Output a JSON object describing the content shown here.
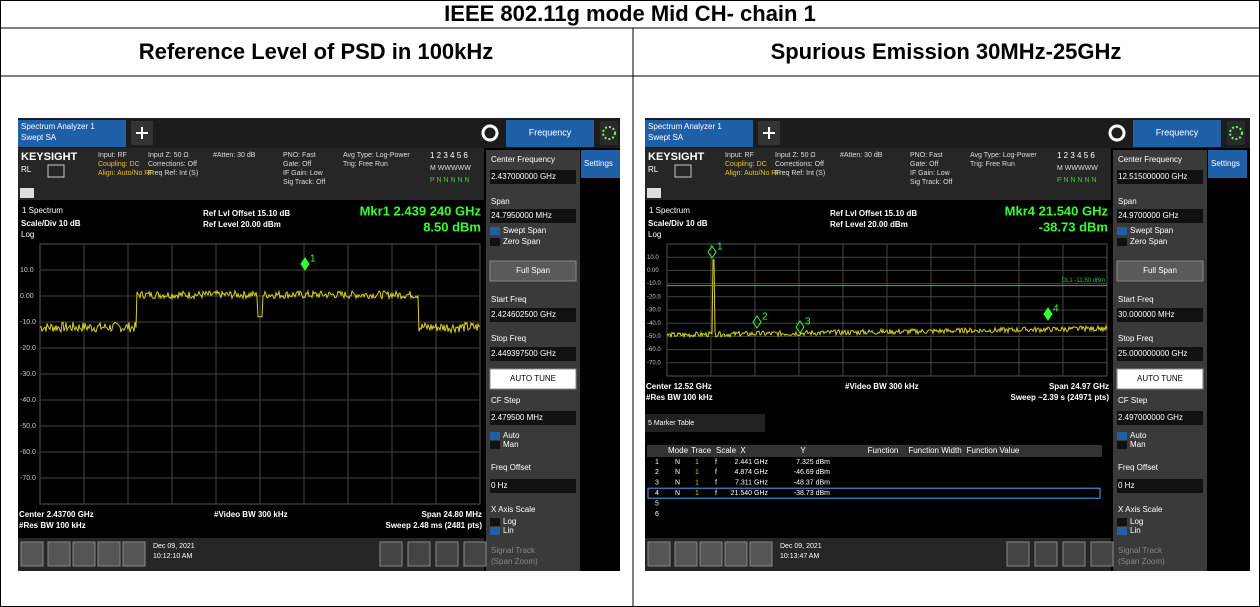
{
  "title": "IEEE 802.11g mode Mid CH- chain 1",
  "headers": [
    "Reference Level of PSD in 100kHz",
    "Spurious Emission 30MHz-25GHz"
  ],
  "panels": [
    {
      "tab": [
        "Spectrum Analyzer 1",
        "Swept SA"
      ],
      "mode": "Frequency",
      "settings": "Settings",
      "brand": "KEYSIGHT",
      "rl": "RL",
      "info": [
        [
          "Input: RF",
          "Coupling: DC",
          "Align: Auto/No RF"
        ],
        [
          "Input Z: 50 Ω",
          "Corrections: Off",
          "Freq Ref: Int (S)"
        ],
        [
          "#Atten: 30 dB"
        ],
        [
          "PNO: Fast",
          "Gate: Off",
          "IF Gain: Low",
          "Sig Track: Off"
        ],
        [
          "Avg Type: Log-Power",
          "Trig: Free Run"
        ]
      ],
      "traces": [
        "1 2 3 4 5 6",
        "M WWWWW",
        "P N N N N N"
      ],
      "window": "1 Spectrum",
      "scale": "Scale/Div 10 dB",
      "log": "Log",
      "ref": [
        "Ref Lvl Offset 15.10 dB",
        "Ref Level 20.00 dBm"
      ],
      "marker": [
        "Mkr1  2.439 240 GHz",
        "8.50 dBm"
      ],
      "ylabels": [
        "10.0",
        "0.00",
        "-10.0",
        "-20.0",
        "-30.0",
        "-40.0",
        "-50.0",
        "-60.0",
        "-70.0"
      ],
      "footer": [
        "Center 2.43700 GHz",
        "#Res BW 100 kHz",
        "#Video BW 300 kHz",
        "Span 24.80 MHz",
        "Sweep 2.48 ms (2481 pts)"
      ],
      "softkeys": [
        "Center Frequency",
        "2.437000000 GHz",
        "Span",
        "24.7950000 MHz",
        "Swept Span",
        "Zero Span",
        "Full Span",
        "Start Freq",
        "2.424602500 GHz",
        "Stop Freq",
        "2.449397500 GHz",
        "AUTO TUNE",
        "CF Step",
        "2.479500 MHz",
        "Auto",
        "Man",
        "Freq Offset",
        "0 Hz",
        "X Axis Scale",
        "Log",
        "Lin",
        "Signal Track",
        "(Span Zoom)"
      ],
      "date": [
        "Dec 09, 2021",
        "10:12:10 AM"
      ],
      "marker_labels": [
        "1"
      ]
    },
    {
      "tab": [
        "Spectrum Analyzer 1",
        "Swept SA"
      ],
      "mode": "Frequency",
      "settings": "Settings",
      "brand": "KEYSIGHT",
      "rl": "RL",
      "info": [
        [
          "Input: RF",
          "Coupling: DC",
          "Align: Auto/No RF"
        ],
        [
          "Input Z: 50 Ω",
          "Corrections: Off",
          "Freq Ref: Int (S)"
        ],
        [
          "#Atten: 30 dB"
        ],
        [
          "PNO: Fast",
          "Gate: Off",
          "IF Gain: Low",
          "Sig Track: Off"
        ],
        [
          "Avg Type: Log-Power",
          "Trig: Free Run"
        ]
      ],
      "traces": [
        "1 2 3 4 5 6",
        "M WWWWW",
        "P N N N N N"
      ],
      "window": "1 Spectrum",
      "scale": "Scale/Div 10 dB",
      "log": "Log",
      "ref": [
        "Ref Lvl Offset 15.10 dB",
        "Ref Level 20.00 dBm"
      ],
      "marker": [
        "Mkr4  21.540 GHz",
        "-38.73 dBm"
      ],
      "ylabels": [
        "10.0",
        "0.00",
        "-10.0",
        "-20.0",
        "-30.0",
        "-40.0",
        "-50.0",
        "-60.0",
        "-70.0"
      ],
      "footer": [
        "Center 12.52 GHz",
        "#Res BW 100 kHz",
        "#Video BW 300 kHz",
        "Span 24.97 GHz",
        "Sweep ~2.39 s (24971 pts)"
      ],
      "softkeys": [
        "Center Frequency",
        "12.515000000 GHz",
        "Span",
        "24.9700000 GHz",
        "Swept Span",
        "Zero Span",
        "Full Span",
        "Start Freq",
        "30.000000 MHz",
        "Stop Freq",
        "25.000000000 GHz",
        "AUTO TUNE",
        "CF Step",
        "2.497000000 GHz",
        "Auto",
        "Man",
        "Freq Offset",
        "0 Hz",
        "X Axis Scale",
        "Log",
        "Lin",
        "Signal Track",
        "(Span Zoom)"
      ],
      "date": [
        "Dec 09, 2021",
        "10:13:47 AM"
      ],
      "marker_labels": [
        "1",
        "2",
        "3",
        "4"
      ],
      "display_line": "DL1 -11.50 dBm",
      "marker_table": {
        "title": "5 Marker Table",
        "columns": [
          "Mode",
          "Trace",
          "Scale",
          "X",
          "Y",
          "Function",
          "Function Width",
          "Function Value"
        ],
        "rows": [
          [
            "1",
            "N",
            "1",
            "f",
            "2.441 GHz",
            "7.325 dBm"
          ],
          [
            "2",
            "N",
            "1",
            "f",
            "4.874 GHz",
            "-46.69 dBm"
          ],
          [
            "3",
            "N",
            "1",
            "f",
            "7.311 GHz",
            "-48.37 dBm"
          ],
          [
            "4",
            "N",
            "1",
            "f",
            "21.540 GHz",
            "-38.73 dBm"
          ],
          [
            "5"
          ],
          [
            "6"
          ]
        ]
      }
    }
  ]
}
